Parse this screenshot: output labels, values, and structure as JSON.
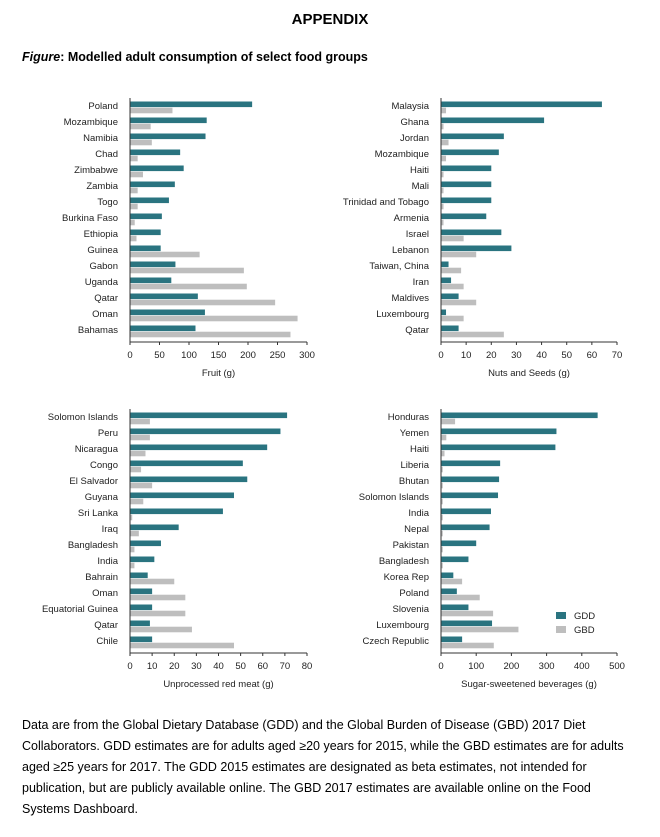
{
  "page": {
    "title": "APPENDIX",
    "figure_label": "Figure",
    "figure_caption": ": Modelled adult consumption of select food groups",
    "note": "Data are from the Global Dietary Database (GDD) and the Global Burden of Disease (GBD) 2017 Diet Collaborators. GDD estimates are for adults aged ≥20 years for 2015, while the GBD estimates are for adults aged ≥25 years for 2017. The GDD 2015 estimates are designated as beta estimates, not intended for publication, but are publicly available online. The GBD 2017 estimates are available online on the Food Systems Dashboard."
  },
  "colors": {
    "gdd": "#2a7480",
    "gbd": "#bebebe",
    "axis": "#333333"
  },
  "chart_data": [
    {
      "type": "bar",
      "orientation": "horizontal",
      "xlabel": "Fruit (g)",
      "xlim": [
        0,
        300
      ],
      "xticks": [
        0,
        50,
        100,
        150,
        200,
        250,
        300
      ],
      "categories": [
        "Poland",
        "Mozambique",
        "Namibia",
        "Chad",
        "Zimbabwe",
        "Zambia",
        "Togo",
        "Burkina Faso",
        "Ethiopia",
        "Guinea",
        "Gabon",
        "Uganda",
        "Qatar",
        "Oman",
        "Bahamas"
      ],
      "series": [
        {
          "name": "GDD",
          "values": [
            207,
            130,
            128,
            85,
            91,
            76,
            66,
            54,
            52,
            52,
            77,
            70,
            115,
            127,
            111
          ]
        },
        {
          "name": "GBD",
          "values": [
            72,
            35,
            37,
            13,
            22,
            13,
            13,
            8,
            11,
            118,
            193,
            198,
            246,
            284,
            272
          ]
        }
      ]
    },
    {
      "type": "bar",
      "orientation": "horizontal",
      "xlabel": "Nuts and Seeds (g)",
      "xlim": [
        0,
        70
      ],
      "xticks": [
        0,
        10,
        20,
        30,
        40,
        50,
        60,
        70
      ],
      "categories": [
        "Malaysia",
        "Ghana",
        "Jordan",
        "Mozambique",
        "Haiti",
        "Mali",
        "Trinidad and Tobago",
        "Armenia",
        "Israel",
        "Lebanon",
        "Taiwan, China",
        "Iran",
        "Maldives",
        "Luxembourg",
        "Qatar"
      ],
      "series": [
        {
          "name": "GDD",
          "values": [
            64,
            41,
            25,
            23,
            20,
            20,
            20,
            18,
            24,
            28,
            3,
            4,
            7,
            2,
            7
          ]
        },
        {
          "name": "GBD",
          "values": [
            2,
            1,
            3,
            2,
            1,
            1,
            1,
            1,
            9,
            14,
            8,
            9,
            14,
            9,
            25
          ]
        }
      ]
    },
    {
      "type": "bar",
      "orientation": "horizontal",
      "xlabel": "Unprocessed red meat (g)",
      "xlim": [
        0,
        80
      ],
      "xticks": [
        0,
        10,
        20,
        30,
        40,
        50,
        60,
        70,
        80
      ],
      "categories": [
        "Solomon Islands",
        "Peru",
        "Nicaragua",
        "Congo",
        "El Salvador",
        "Guyana",
        "Sri Lanka",
        "Iraq",
        "Bangladesh",
        "India",
        "Bahrain",
        "Oman",
        "Equatorial Guinea",
        "Qatar",
        "Chile"
      ],
      "series": [
        {
          "name": "GDD",
          "values": [
            71,
            68,
            62,
            51,
            53,
            47,
            42,
            22,
            14,
            11,
            8,
            10,
            10,
            9,
            10
          ]
        },
        {
          "name": "GBD",
          "values": [
            9,
            9,
            7,
            5,
            10,
            6,
            1,
            4,
            2,
            2,
            20,
            25,
            25,
            28,
            47
          ]
        }
      ]
    },
    {
      "type": "bar",
      "orientation": "horizontal",
      "xlabel": "Sugar-sweetened beverages (g)",
      "xlim": [
        0,
        500
      ],
      "xticks": [
        0,
        100,
        200,
        300,
        400,
        500
      ],
      "legend": {
        "position": "right",
        "entries": [
          "GDD",
          "GBD"
        ]
      },
      "categories": [
        "Honduras",
        "Yemen",
        "Haiti",
        "Liberia",
        "Bhutan",
        "Solomon Islands",
        "India",
        "Nepal",
        "Pakistan",
        "Bangladesh",
        "Korea Rep",
        "Poland",
        "Slovenia",
        "Luxembourg",
        "Czech Republic"
      ],
      "series": [
        {
          "name": "GDD",
          "values": [
            445,
            328,
            325,
            168,
            165,
            162,
            142,
            138,
            100,
            78,
            35,
            45,
            78,
            145,
            60
          ]
        },
        {
          "name": "GBD",
          "values": [
            40,
            15,
            10,
            5,
            5,
            5,
            5,
            5,
            5,
            5,
            60,
            110,
            148,
            220,
            150
          ]
        }
      ]
    }
  ]
}
